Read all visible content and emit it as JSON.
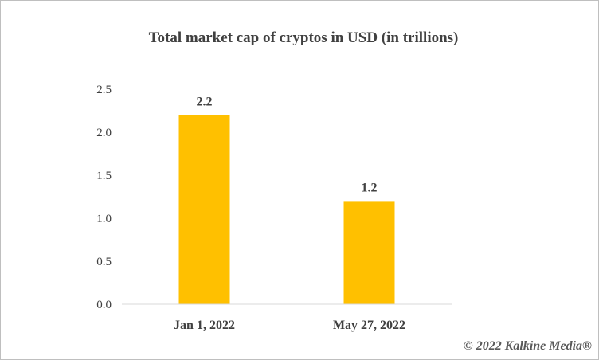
{
  "chart_data": {
    "type": "bar",
    "title": "Total market cap of cryptos in USD (in trillions)",
    "categories": [
      "Jan 1, 2022",
      "May 27, 2022"
    ],
    "values": [
      2.2,
      1.2
    ],
    "data_labels": [
      "2.2",
      "1.2"
    ],
    "xlabel": "",
    "ylabel": "",
    "ylim": [
      0,
      2.5
    ],
    "yticks": [
      0,
      0.5,
      1.0,
      1.5,
      2.0,
      2.5
    ],
    "ytick_labels": [
      "0.0",
      "0.5",
      "1.0",
      "1.5",
      "2.0",
      "2.5"
    ],
    "grid": false,
    "legend": "none",
    "bar_color": "#FFC000"
  },
  "credit": "© 2022 Kalkine Media®"
}
